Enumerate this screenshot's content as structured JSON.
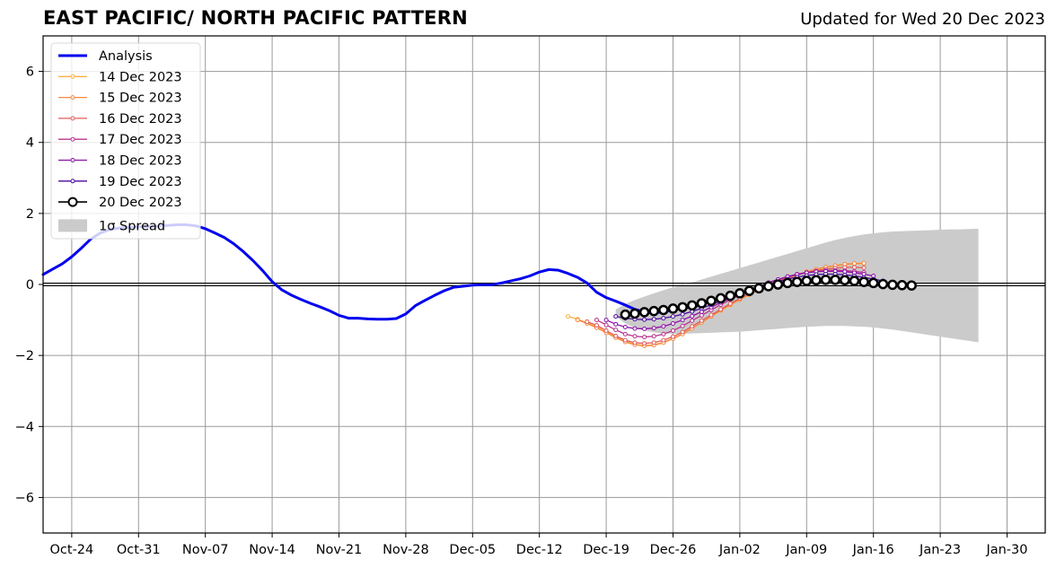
{
  "chart_data": {
    "type": "line",
    "title": "EAST PACIFIC/ NORTH PACIFIC PATTERN",
    "subtitle": "Updated for Wed 20 Dec 2023",
    "xlabel": "",
    "ylabel": "",
    "xlim": [
      "2023-10-21",
      "2024-02-03"
    ],
    "ylim": [
      -7,
      7
    ],
    "yticks": [
      -6,
      -4,
      -2,
      0,
      2,
      4,
      6
    ],
    "ytick_labels": [
      "−6",
      "−4",
      "−2",
      "0",
      "2",
      "4",
      "6"
    ],
    "xticks": [
      "2023-10-24",
      "2023-10-31",
      "2023-11-07",
      "2023-11-14",
      "2023-11-21",
      "2023-11-28",
      "2023-12-05",
      "2023-12-12",
      "2023-12-19",
      "2023-12-26",
      "2024-01-02",
      "2024-01-09",
      "2024-01-16",
      "2024-01-23",
      "2024-01-30"
    ],
    "xtick_labels": [
      "Oct-24",
      "Oct-31",
      "Nov-07",
      "Nov-14",
      "Nov-21",
      "Nov-28",
      "Dec-05",
      "Dec-12",
      "Dec-19",
      "Dec-26",
      "Jan-02",
      "Jan-09",
      "Jan-16",
      "Jan-23",
      "Jan-30"
    ],
    "grid": true,
    "legend_position": "top-left",
    "series": [
      {
        "name": "Analysis",
        "color": "#0000ee",
        "style": "thick-line",
        "start": "2023-10-21",
        "values": [
          0.28,
          0.43,
          0.58,
          0.78,
          1.02,
          1.28,
          1.45,
          1.55,
          1.59,
          1.61,
          1.62,
          1.63,
          1.64,
          1.66,
          1.68,
          1.68,
          1.65,
          1.57,
          1.45,
          1.32,
          1.14,
          0.92,
          0.67,
          0.39,
          0.08,
          -0.15,
          -0.3,
          -0.42,
          -0.53,
          -0.63,
          -0.74,
          -0.87,
          -0.95,
          -0.95,
          -0.97,
          -0.98,
          -0.98,
          -0.96,
          -0.83,
          -0.6,
          -0.45,
          -0.31,
          -0.18,
          -0.08,
          -0.05,
          -0.02,
          -0.01,
          -0.01,
          0.04,
          0.1,
          0.16,
          0.24,
          0.35,
          0.42,
          0.4,
          0.31,
          0.2,
          0.04,
          -0.22,
          -0.37,
          -0.47,
          -0.58,
          -0.7,
          -0.78,
          -0.8,
          -0.77,
          -0.72,
          -0.67,
          -0.63,
          -0.58
        ]
      },
      {
        "name": "14 Dec 2023",
        "color": "#fdb042",
        "style": "marker-line",
        "start": "2023-12-15",
        "values": [
          -0.9,
          -0.98,
          -1.08,
          -1.2,
          -1.34,
          -1.48,
          -1.6,
          -1.68,
          -1.72,
          -1.7,
          -1.63,
          -1.52,
          -1.38,
          -1.23,
          -1.07,
          -0.9,
          -0.74,
          -0.58,
          -0.43,
          -0.29,
          -0.16,
          -0.04,
          0.07,
          0.17,
          0.26,
          0.34,
          0.41,
          0.47,
          0.52,
          0.56,
          0.58,
          0.59
        ]
      },
      {
        "name": "15 Dec 2023",
        "color": "#f58840",
        "style": "marker-line",
        "start": "2023-12-16",
        "values": [
          -1.0,
          -1.1,
          -1.22,
          -1.36,
          -1.5,
          -1.62,
          -1.7,
          -1.73,
          -1.71,
          -1.64,
          -1.53,
          -1.4,
          -1.24,
          -1.07,
          -0.9,
          -0.73,
          -0.57,
          -0.42,
          -0.28,
          -0.15,
          -0.03,
          0.08,
          0.18,
          0.28,
          0.36,
          0.43,
          0.49,
          0.53,
          0.57,
          0.59,
          0.6
        ]
      },
      {
        "name": "16 Dec 2023",
        "color": "#e05c5c",
        "style": "marker-line",
        "start": "2023-12-17",
        "values": [
          -1.05,
          -1.15,
          -1.3,
          -1.45,
          -1.57,
          -1.64,
          -1.66,
          -1.64,
          -1.57,
          -1.47,
          -1.34,
          -1.18,
          -1.02,
          -0.86,
          -0.7,
          -0.54,
          -0.39,
          -0.25,
          -0.12,
          -0.01,
          0.1,
          0.19,
          0.27,
          0.34,
          0.39,
          0.43,
          0.46,
          0.48,
          0.48,
          0.47
        ]
      },
      {
        "name": "17 Dec 2023",
        "color": "#b8348c",
        "style": "marker-line",
        "start": "2023-12-18",
        "values": [
          -1.0,
          -1.14,
          -1.28,
          -1.4,
          -1.46,
          -1.48,
          -1.46,
          -1.4,
          -1.3,
          -1.17,
          -1.02,
          -0.87,
          -0.72,
          -0.57,
          -0.43,
          -0.3,
          -0.17,
          -0.06,
          0.05,
          0.14,
          0.22,
          0.29,
          0.33,
          0.37,
          0.39,
          0.4,
          0.39,
          0.37,
          0.34
        ]
      },
      {
        "name": "18 Dec 2023",
        "color": "#8b10a8",
        "style": "marker-line",
        "start": "2023-12-19",
        "values": [
          -1.0,
          -1.12,
          -1.2,
          -1.24,
          -1.25,
          -1.23,
          -1.18,
          -1.1,
          -1.0,
          -0.89,
          -0.77,
          -0.64,
          -0.51,
          -0.39,
          -0.27,
          -0.15,
          -0.05,
          0.05,
          0.14,
          0.22,
          0.28,
          0.33,
          0.36,
          0.37,
          0.37,
          0.36,
          0.33,
          0.29,
          0.24
        ]
      },
      {
        "name": "19 Dec 2023",
        "color": "#4b0aa0",
        "style": "marker-line",
        "start": "2023-12-20",
        "values": [
          -0.9,
          -0.95,
          -0.98,
          -0.99,
          -0.98,
          -0.95,
          -0.9,
          -0.84,
          -0.76,
          -0.67,
          -0.57,
          -0.47,
          -0.37,
          -0.27,
          -0.18,
          -0.09,
          0.0,
          0.08,
          0.15,
          0.21,
          0.25,
          0.28,
          0.29,
          0.29,
          0.27,
          0.24,
          0.2,
          0.15,
          0.1
        ]
      },
      {
        "name": "20 Dec 2023",
        "color": "#000000",
        "style": "circle-line",
        "start": "2023-12-21",
        "values": [
          -0.85,
          -0.82,
          -0.78,
          -0.75,
          -0.72,
          -0.68,
          -0.64,
          -0.59,
          -0.53,
          -0.46,
          -0.39,
          -0.32,
          -0.25,
          -0.18,
          -0.11,
          -0.05,
          0.0,
          0.04,
          0.07,
          0.1,
          0.12,
          0.13,
          0.13,
          0.12,
          0.1,
          0.07,
          0.04,
          0.01,
          -0.01,
          -0.02,
          -0.03
        ]
      }
    ],
    "spread": {
      "name": "1σ Spread",
      "color": "#cbcbcb",
      "start": "2023-12-20",
      "upper": [
        -0.7,
        -0.55,
        -0.44,
        -0.34,
        -0.25,
        -0.16,
        -0.08,
        -0.01,
        0.06,
        0.14,
        0.22,
        0.3,
        0.38,
        0.46,
        0.54,
        0.62,
        0.7,
        0.78,
        0.86,
        0.94,
        1.02,
        1.1,
        1.18,
        1.25,
        1.31,
        1.36,
        1.41,
        1.44,
        1.47,
        1.49,
        1.5,
        1.51,
        1.52,
        1.53,
        1.54,
        1.55,
        1.55,
        1.56,
        1.57
      ],
      "lower": [
        -0.9,
        -1.1,
        -1.22,
        -1.3,
        -1.35,
        -1.38,
        -1.39,
        -1.39,
        -1.38,
        -1.37,
        -1.36,
        -1.35,
        -1.34,
        -1.33,
        -1.31,
        -1.29,
        -1.27,
        -1.25,
        -1.23,
        -1.21,
        -1.19,
        -1.18,
        -1.17,
        -1.17,
        -1.17,
        -1.18,
        -1.19,
        -1.21,
        -1.24,
        -1.27,
        -1.31,
        -1.35,
        -1.39,
        -1.43,
        -1.47,
        -1.51,
        -1.55,
        -1.59,
        -1.63
      ]
    }
  }
}
